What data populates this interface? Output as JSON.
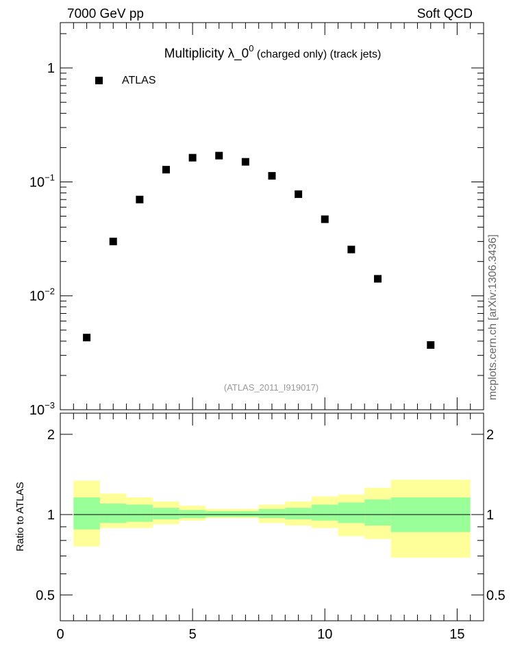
{
  "header": {
    "energy_label": "7000 GeV pp",
    "category_label": "Soft QCD"
  },
  "plot_title": {
    "main": "Multiplicity  λ_0",
    "superscript": "0",
    "suffix": " (charged only) (track jets)"
  },
  "analysis_id": "(ATLAS_2011_I919017)",
  "side_label": "mcplots.cern.ch [arXiv:1306.3436]",
  "legend": {
    "entries": [
      {
        "name": "ATLAS",
        "marker": "square"
      }
    ],
    "placement": "top-left"
  },
  "colors": {
    "band_outer": "#ffff99",
    "band_inner": "#99ff99",
    "marker": "#000000",
    "reference_line": "#000000",
    "analysis_text": "#999999",
    "side_text": "#666666"
  },
  "chart_data": [
    {
      "type": "scatter",
      "title": "Multiplicity λ_0^0 (charged only) (track jets)",
      "yscale": "log",
      "xlim": [
        0,
        16
      ],
      "ylim": [
        0.001,
        2.5
      ],
      "grid": false,
      "y_ticks": [
        {
          "value": 1,
          "label": "1"
        },
        {
          "value": 0.1,
          "base": "10",
          "exp": "−1"
        },
        {
          "value": 0.01,
          "base": "10",
          "exp": "−2"
        },
        {
          "value": 0.001,
          "base": "10",
          "exp": "−3"
        }
      ],
      "series": [
        {
          "name": "ATLAS",
          "x": [
            1,
            2,
            3,
            4,
            5,
            6,
            7,
            8,
            9,
            10,
            11,
            12,
            14
          ],
          "y": [
            0.0043,
            0.03,
            0.07,
            0.128,
            0.163,
            0.17,
            0.15,
            0.113,
            0.078,
            0.047,
            0.0255,
            0.0141,
            0.0037
          ]
        }
      ]
    },
    {
      "type": "area",
      "ylabel": "Ratio to ATLAS",
      "xlim": [
        0,
        16
      ],
      "ylim": [
        0.4,
        2.4
      ],
      "yscale": "log",
      "reference_line": 1,
      "x_ticks": [
        0,
        5,
        10,
        15
      ],
      "y_ticks_left": [
        {
          "value": 2,
          "label": "2"
        },
        {
          "value": 1,
          "label": "1"
        },
        {
          "value": 0.5,
          "label": "0.5"
        }
      ],
      "y_ticks_right": [
        {
          "value": 2,
          "label": "2"
        },
        {
          "value": 1,
          "label": "1"
        },
        {
          "value": 0.5,
          "label": "0.5"
        }
      ],
      "bins": [
        {
          "lo": 0.5,
          "hi": 1.5,
          "inner": [
            0.88,
            1.16
          ],
          "outer": [
            0.76,
            1.34
          ]
        },
        {
          "lo": 1.5,
          "hi": 2.5,
          "inner": [
            0.93,
            1.1
          ],
          "outer": [
            0.89,
            1.2
          ]
        },
        {
          "lo": 2.5,
          "hi": 3.5,
          "inner": [
            0.94,
            1.09
          ],
          "outer": [
            0.89,
            1.16
          ]
        },
        {
          "lo": 3.5,
          "hi": 4.5,
          "inner": [
            0.96,
            1.06
          ],
          "outer": [
            0.92,
            1.12
          ]
        },
        {
          "lo": 4.5,
          "hi": 5.5,
          "inner": [
            0.97,
            1.04
          ],
          "outer": [
            0.95,
            1.08
          ]
        },
        {
          "lo": 5.5,
          "hi": 6.5,
          "inner": [
            0.98,
            1.03
          ],
          "outer": [
            0.97,
            1.05
          ]
        },
        {
          "lo": 6.5,
          "hi": 7.5,
          "inner": [
            0.98,
            1.03
          ],
          "outer": [
            0.97,
            1.05
          ]
        },
        {
          "lo": 7.5,
          "hi": 8.5,
          "inner": [
            0.97,
            1.05
          ],
          "outer": [
            0.93,
            1.09
          ]
        },
        {
          "lo": 8.5,
          "hi": 9.5,
          "inner": [
            0.96,
            1.06
          ],
          "outer": [
            0.91,
            1.12
          ]
        },
        {
          "lo": 9.5,
          "hi": 10.5,
          "inner": [
            0.95,
            1.09
          ],
          "outer": [
            0.89,
            1.17
          ]
        },
        {
          "lo": 10.5,
          "hi": 11.5,
          "inner": [
            0.93,
            1.11
          ],
          "outer": [
            0.83,
            1.19
          ]
        },
        {
          "lo": 11.5,
          "hi": 12.5,
          "inner": [
            0.91,
            1.14
          ],
          "outer": [
            0.81,
            1.26
          ]
        },
        {
          "lo": 12.5,
          "hi": 15.5,
          "inner": [
            0.86,
            1.16
          ],
          "outer": [
            0.69,
            1.35
          ]
        }
      ]
    }
  ]
}
